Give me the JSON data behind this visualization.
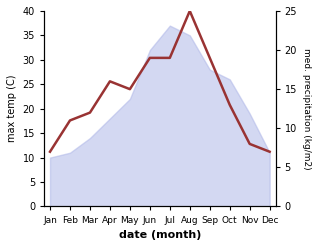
{
  "months": [
    "Jan",
    "Feb",
    "Mar",
    "Apr",
    "May",
    "Jun",
    "Jul",
    "Aug",
    "Sep",
    "Oct",
    "Nov",
    "Dec"
  ],
  "max_temp": [
    10,
    11,
    14,
    18,
    22,
    32,
    37,
    35,
    28,
    26,
    19,
    11
  ],
  "precip": [
    7,
    11,
    12,
    16,
    15,
    19,
    19,
    25,
    19,
    13,
    8,
    7
  ],
  "fill_color": "#b0b8e8",
  "precip_color": "#993333",
  "ylim_left": [
    0,
    40
  ],
  "ylim_right": [
    0,
    25
  ],
  "xlabel": "date (month)",
  "ylabel_left": "max temp (C)",
  "ylabel_right": "med. precipitation (kg/m2)",
  "fill_alpha": 0.55,
  "precip_linewidth": 1.8
}
